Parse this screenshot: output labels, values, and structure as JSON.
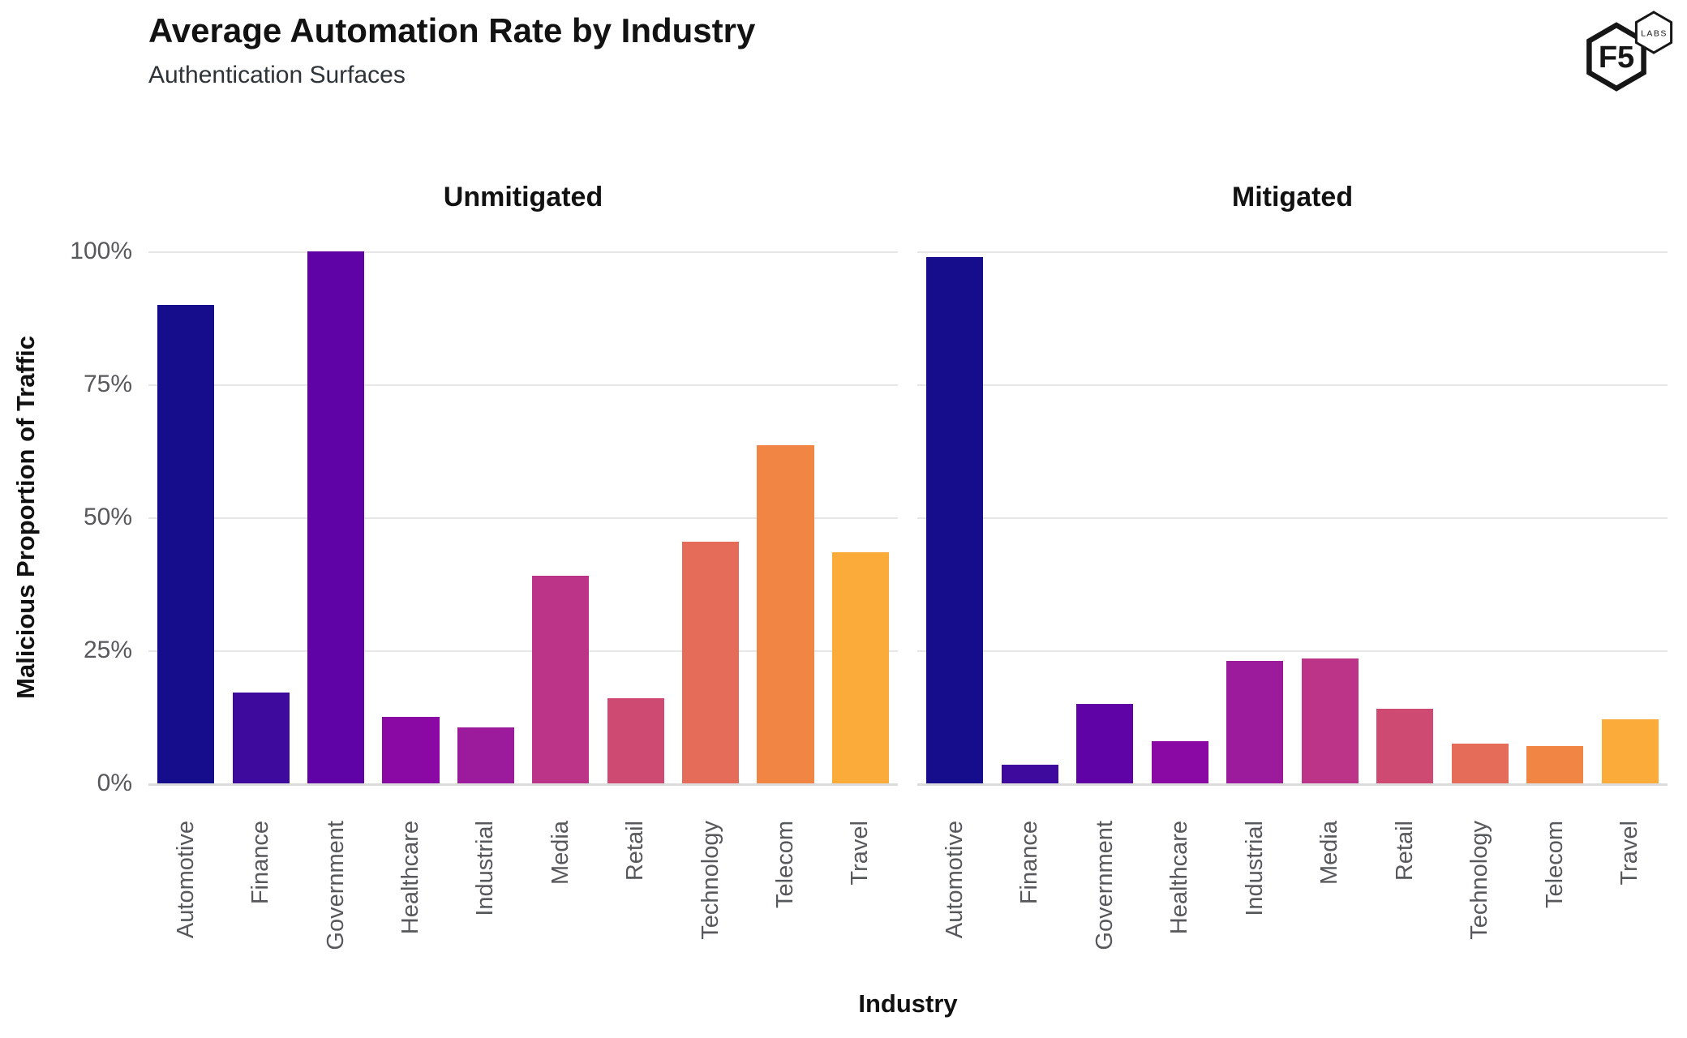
{
  "header": {
    "title": "Average Automation Rate by Industry",
    "subtitle": "Authentication Surfaces",
    "logo": {
      "main_text": "F5",
      "sub_text": "LABS"
    }
  },
  "chart_data": {
    "type": "bar",
    "title": "Average Automation Rate by Industry",
    "subtitle": "Authentication Surfaces",
    "xlabel": "Industry",
    "ylabel": "Malicious Proportion of Traffic",
    "ylim": [
      0,
      100
    ],
    "grid": "horizontal",
    "legend": "none",
    "yticks": [
      "100%",
      "75%",
      "50%",
      "25%",
      "0%"
    ],
    "categories": [
      "Automotive",
      "Finance",
      "Government",
      "Healthcare",
      "Industrial",
      "Media",
      "Retail",
      "Technology",
      "Telecom",
      "Travel"
    ],
    "subplots": [
      {
        "title": "Unmitigated",
        "values": [
          90,
          17,
          100,
          12.5,
          10.5,
          39,
          16,
          45.5,
          63.5,
          43.5
        ]
      },
      {
        "title": "Mitigated",
        "values": [
          99,
          3.5,
          15,
          8,
          23,
          23.5,
          14,
          7.5,
          7,
          12
        ]
      }
    ],
    "bar_colors": [
      "#150d8c",
      "#3e0a9e",
      "#5f02a6",
      "#8a09a5",
      "#9c1a9c",
      "#bb3488",
      "#ce4a73",
      "#e56c59",
      "#f18544",
      "#fbab3a"
    ],
    "gridline_color": "#e6e6e6",
    "axis_line_color": "#dcdcdc",
    "tick_label_color": "#56585b"
  }
}
